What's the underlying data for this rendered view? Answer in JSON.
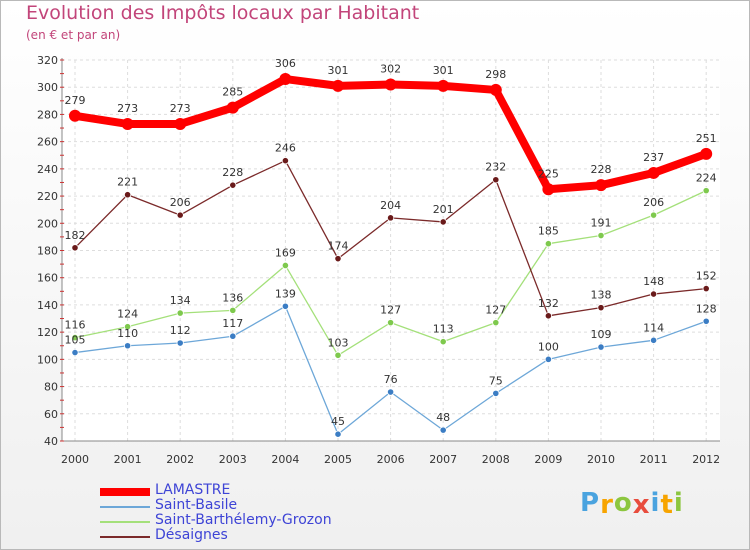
{
  "chart_data": {
    "type": "line",
    "title": "Evolution des Impôts locaux par Habitant",
    "subtitle": "(en € et par an)",
    "xlabel": "",
    "ylabel": "",
    "categories": [
      "2000",
      "2001",
      "2002",
      "2003",
      "2004",
      "2005",
      "2006",
      "2007",
      "2008",
      "2009",
      "2010",
      "2011",
      "2012"
    ],
    "ylim": [
      40,
      320
    ],
    "yticks": [
      40,
      60,
      80,
      100,
      120,
      140,
      160,
      180,
      200,
      220,
      240,
      260,
      280,
      300,
      320
    ],
    "grid": true,
    "legend_position": "bottom-left",
    "series": [
      {
        "name": "LAMASTRE",
        "color": "#ff0000",
        "values": [
          279,
          273,
          273,
          285,
          306,
          301,
          302,
          301,
          298,
          225,
          228,
          237,
          251
        ]
      },
      {
        "name": "Saint-Basile",
        "color": "#6da7d8",
        "values": [
          105,
          110,
          112,
          117,
          139,
          45,
          76,
          48,
          75,
          100,
          109,
          114,
          128
        ]
      },
      {
        "name": "Saint-Barthélemy-Grozon",
        "color": "#a4e07a",
        "values": [
          116,
          124,
          134,
          136,
          169,
          103,
          127,
          113,
          127,
          185,
          191,
          206,
          224
        ]
      },
      {
        "name": "Désaignes",
        "color": "#7b2a2a",
        "values": [
          182,
          221,
          206,
          228,
          246,
          174,
          204,
          201,
          232,
          132,
          138,
          148,
          152
        ]
      }
    ]
  },
  "logo": {
    "letters": [
      "P",
      "r",
      "o",
      "x",
      "i",
      "t",
      "i"
    ],
    "colors": [
      "#4aa3df",
      "#f7a400",
      "#8cc63f",
      "#e84c3d",
      "#4aa3df",
      "#f7a400",
      "#8cc63f"
    ]
  }
}
